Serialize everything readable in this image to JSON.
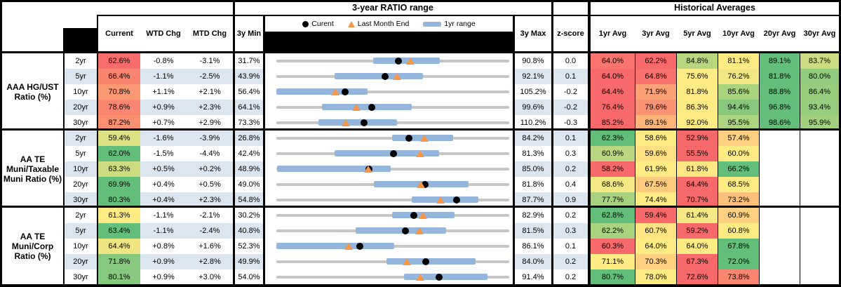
{
  "header": {
    "range_title": "3-year RATIO range",
    "averages_title": "Historical Averages",
    "col_current": "Current",
    "col_wtd": "WTD Chg",
    "col_mtd": "MTD Chg",
    "col_min": "3y Min",
    "col_max": "3y Max",
    "col_z": "z-score",
    "avg_cols": [
      "1yr Avg",
      "3yr Avg",
      "5yr Avg",
      "10yr Avg",
      "20yr Avg",
      "30yr Avg"
    ],
    "legend": {
      "current": "Curent",
      "last_month_end": "Last Month End",
      "range": "1yr range"
    }
  },
  "colors": {
    "banding_blue": "#DCE6F1",
    "range_bar_blue": "#94B6DD",
    "track_gray": "#C6C6C6",
    "current_dot_black": "#000000",
    "last_month_end_orange": "#F79646",
    "scale_low_red": "#F8696B",
    "scale_mid_yellow": "#FFEB84",
    "scale_high_green": "#63BE7B"
  },
  "chart_data": {
    "type": "table+range",
    "note": "Each row's range strip spans 3y Min to 3y Max; blue bar = 1yr range, black dot = Current, orange triangle = Last Month End",
    "groups": [
      {
        "label": "AAA HG/UST Ratio (%)",
        "rows": [
          {
            "tenor": "2yr",
            "current": 62.6,
            "wtd_chg": "-0.8%",
            "mtd_chg": "-3.1%",
            "min_3y": 31.7,
            "max_3y": 90.8,
            "z_score": "0.0",
            "last_month_end": 65.7,
            "range_1yr": [
              56.3,
              73.2
            ],
            "avgs": [
              64.0,
              62.2,
              84.8,
              81.1,
              89.1,
              83.7
            ]
          },
          {
            "tenor": "5yr",
            "current": 66.4,
            "wtd_chg": "-1.1%",
            "mtd_chg": "-2.5%",
            "min_3y": 43.9,
            "max_3y": 92.1,
            "z_score": "0.1",
            "last_month_end": 68.9,
            "range_1yr": [
              56.0,
              74.2
            ],
            "avgs": [
              64.0,
              64.8,
              75.6,
              76.2,
              81.8,
              80.0
            ]
          },
          {
            "tenor": "10yr",
            "current": 70.8,
            "wtd_chg": "+1.1%",
            "mtd_chg": "+2.1%",
            "min_3y": 56.4,
            "max_3y": 105.2,
            "z_score": "-0.2",
            "last_month_end": 68.7,
            "range_1yr": [
              56.4,
              75.5
            ],
            "avgs": [
              64.4,
              71.9,
              81.8,
              85.6,
              88.8,
              86.4
            ]
          },
          {
            "tenor": "20yr",
            "current": 78.6,
            "wtd_chg": "+0.9%",
            "mtd_chg": "+2.3%",
            "min_3y": 64.1,
            "max_3y": 99.6,
            "z_score": "-0.2",
            "last_month_end": 76.3,
            "range_1yr": [
              71.1,
              84.7
            ],
            "avgs": [
              76.4,
              79.6,
              86.3,
              94.4,
              96.8,
              93.4
            ]
          },
          {
            "tenor": "30yr",
            "current": 87.2,
            "wtd_chg": "+0.7%",
            "mtd_chg": "+2.9%",
            "min_3y": 73.3,
            "max_3y": 110.2,
            "z_score": "-0.3",
            "last_month_end": 84.3,
            "range_1yr": [
              80.0,
              92.4
            ],
            "avgs": [
              85.2,
              89.1,
              92.0,
              95.5,
              98.6,
              95.9
            ]
          }
        ]
      },
      {
        "label": "AA TE Muni/Taxable Muni Ratio (%)",
        "rows": [
          {
            "tenor": "2yr",
            "current": 59.4,
            "wtd_chg": "-1.6%",
            "mtd_chg": "-3.9%",
            "min_3y": 26.8,
            "max_3y": 84.2,
            "z_score": "0.1",
            "last_month_end": 63.3,
            "range_1yr": [
              55.3,
              70.4
            ],
            "avgs": [
              62.3,
              58.6,
              52.9,
              57.4,
              null,
              null
            ]
          },
          {
            "tenor": "5yr",
            "current": 62.0,
            "wtd_chg": "-1.5%",
            "mtd_chg": "-4.4%",
            "min_3y": 42.4,
            "max_3y": 81.3,
            "z_score": "0.3",
            "last_month_end": 66.4,
            "range_1yr": [
              52.1,
              69.6
            ],
            "avgs": [
              60.9,
              59.6,
              55.5,
              60.0,
              null,
              null
            ]
          },
          {
            "tenor": "10yr",
            "current": 63.3,
            "wtd_chg": "+0.5%",
            "mtd_chg": "+0.2%",
            "min_3y": 48.9,
            "max_3y": 85.0,
            "z_score": "0.2",
            "last_month_end": 63.1,
            "range_1yr": [
              49.0,
              66.6
            ],
            "avgs": [
              58.2,
              61.9,
              61.8,
              66.2,
              null,
              null
            ]
          },
          {
            "tenor": "20yr",
            "current": 69.9,
            "wtd_chg": "+0.4%",
            "mtd_chg": "+0.5%",
            "min_3y": 49.0,
            "max_3y": 81.8,
            "z_score": "0.4",
            "last_month_end": 69.4,
            "range_1yr": [
              62.7,
              76.1
            ],
            "avgs": [
              68.6,
              67.5,
              64.4,
              68.5,
              null,
              null
            ]
          },
          {
            "tenor": "30yr",
            "current": 80.3,
            "wtd_chg": "+0.4%",
            "mtd_chg": "+2.3%",
            "min_3y": 54.8,
            "max_3y": 87.7,
            "z_score": "0.9",
            "last_month_end": 78.0,
            "range_1yr": [
              73.9,
              83.3
            ],
            "avgs": [
              77.7,
              74.4,
              70.7,
              73.2,
              null,
              null
            ]
          }
        ]
      },
      {
        "label": "AA TE Muni/Corp Ratio (%)",
        "rows": [
          {
            "tenor": "2yr",
            "current": 61.3,
            "wtd_chg": "-1.1%",
            "mtd_chg": "-2.1%",
            "min_3y": 30.2,
            "max_3y": 82.9,
            "z_score": "0.2",
            "last_month_end": 63.4,
            "range_1yr": [
              56.4,
              70.5
            ],
            "avgs": [
              62.8,
              59.4,
              61.4,
              60.9,
              null,
              null
            ]
          },
          {
            "tenor": "5yr",
            "current": 63.4,
            "wtd_chg": "-1.1%",
            "mtd_chg": "-2.4%",
            "min_3y": 40.8,
            "max_3y": 81.5,
            "z_score": "0.3",
            "last_month_end": 65.8,
            "range_1yr": [
              54.6,
              70.5
            ],
            "avgs": [
              62.2,
              60.7,
              59.2,
              60.8,
              null,
              null
            ]
          },
          {
            "tenor": "10yr",
            "current": 64.4,
            "wtd_chg": "+0.8%",
            "mtd_chg": "+1.6%",
            "min_3y": 52.3,
            "max_3y": 86.1,
            "z_score": "0.1",
            "last_month_end": 62.8,
            "range_1yr": [
              52.3,
              69.4
            ],
            "avgs": [
              60.3,
              64.0,
              64.0,
              67.8,
              null,
              null
            ]
          },
          {
            "tenor": "20yr",
            "current": 71.8,
            "wtd_chg": "+0.9%",
            "mtd_chg": "+2.8%",
            "min_3y": 49.9,
            "max_3y": 84.0,
            "z_score": "0.2",
            "last_month_end": 69.0,
            "range_1yr": [
              66.0,
              79.1
            ],
            "avgs": [
              71.1,
              70.3,
              67.3,
              72.0,
              null,
              null
            ]
          },
          {
            "tenor": "30yr",
            "current": 80.1,
            "wtd_chg": "+0.9%",
            "mtd_chg": "+3.0%",
            "min_3y": 54.0,
            "max_3y": 91.4,
            "z_score": "0.2",
            "last_month_end": 77.1,
            "range_1yr": [
              74.5,
              87.9
            ],
            "avgs": [
              80.7,
              78.0,
              72.6,
              73.8,
              null,
              null
            ]
          }
        ]
      }
    ]
  }
}
